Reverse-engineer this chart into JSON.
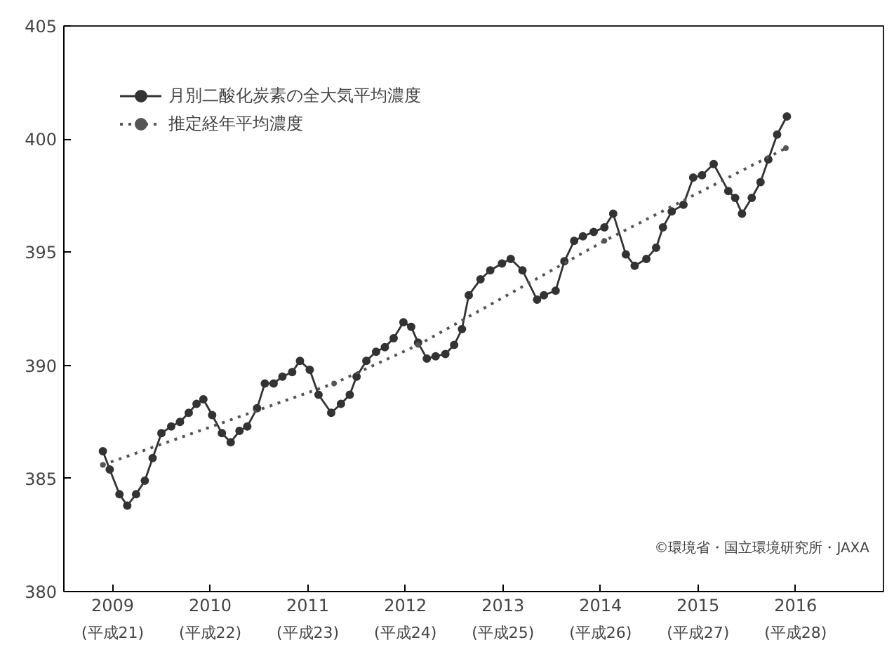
{
  "chart_data": {
    "type": "line",
    "xlim": [
      2008.5,
      2016.9
    ],
    "xticks": [
      2009,
      2010,
      2011,
      2012,
      2013,
      2014,
      2015,
      2016
    ],
    "ylim": [
      380,
      405
    ],
    "yticks": [
      380,
      385,
      390,
      395,
      400,
      405
    ],
    "grid": false,
    "legend": "top left",
    "series": [
      {
        "name": "月別二酸化炭素の全大気平均濃度",
        "color": "#333333",
        "marker": "circle",
        "line_style": "solid",
        "x": [
          2008.9,
          2008.97,
          2009.07,
          2009.15,
          2009.24,
          2009.33,
          2009.41,
          2009.5,
          2009.6,
          2009.69,
          2009.78,
          2009.86,
          2009.93,
          2010.02,
          2010.12,
          2010.21,
          2010.3,
          2010.38,
          2010.48,
          2010.56,
          2010.65,
          2010.74,
          2010.84,
          2010.92,
          2011.02,
          2011.11,
          2011.24,
          2011.34,
          2011.43,
          2011.5,
          2011.6,
          2011.7,
          2011.79,
          2011.88,
          2011.98,
          2012.06,
          2012.13,
          2012.22,
          2012.31,
          2012.41,
          2012.5,
          2012.58,
          2012.65,
          2012.77,
          2012.87,
          2012.99,
          2013.08,
          2013.2,
          2013.35,
          2013.42,
          2013.54,
          2013.63,
          2013.73,
          2013.82,
          2013.93,
          2014.04,
          2014.13,
          2014.26,
          2014.35,
          2014.47,
          2014.57,
          2014.64,
          2014.73,
          2014.85,
          2014.95,
          2015.04,
          2015.16,
          2015.31,
          2015.38,
          2015.45,
          2015.55,
          2015.64,
          2015.72,
          2015.81,
          2015.91
        ],
        "values": [
          386.2,
          385.4,
          384.3,
          383.8,
          384.3,
          384.9,
          385.9,
          387.0,
          387.3,
          387.5,
          387.9,
          388.3,
          388.5,
          387.8,
          387.0,
          386.6,
          387.1,
          387.3,
          388.1,
          389.2,
          389.2,
          389.5,
          389.7,
          390.2,
          389.8,
          388.7,
          387.9,
          388.3,
          388.7,
          389.5,
          390.2,
          390.6,
          390.8,
          391.2,
          391.9,
          391.7,
          391.0,
          390.3,
          390.4,
          390.5,
          390.9,
          391.6,
          393.1,
          393.8,
          394.2,
          394.5,
          394.7,
          394.2,
          392.9,
          393.1,
          393.3,
          394.6,
          395.5,
          395.7,
          395.9,
          396.1,
          396.7,
          394.9,
          394.4,
          394.7,
          395.2,
          396.1,
          396.8,
          397.1,
          398.3,
          398.4,
          398.9,
          397.7,
          397.4,
          396.7,
          397.4,
          398.1,
          399.1,
          400.2,
          401.0
        ]
      },
      {
        "name": "推定経年平均濃度",
        "color": "#555555",
        "marker": "circle",
        "line_style": "dotted",
        "x": [
          2008.9,
          2011.27,
          2012.13,
          2014.04,
          2015.9
        ],
        "values": [
          385.6,
          389.2,
          390.9,
          395.5,
          399.6
        ]
      }
    ],
    "annotations": [
      {
        "text": "©環境省・国立環境研究所・JAXA"
      },
      "(平成21)",
      "(平成22)",
      "(平成23)",
      "(平成24)",
      "(平成25)",
      "(平成26)",
      "(平成27)",
      "(平成28)"
    ]
  }
}
